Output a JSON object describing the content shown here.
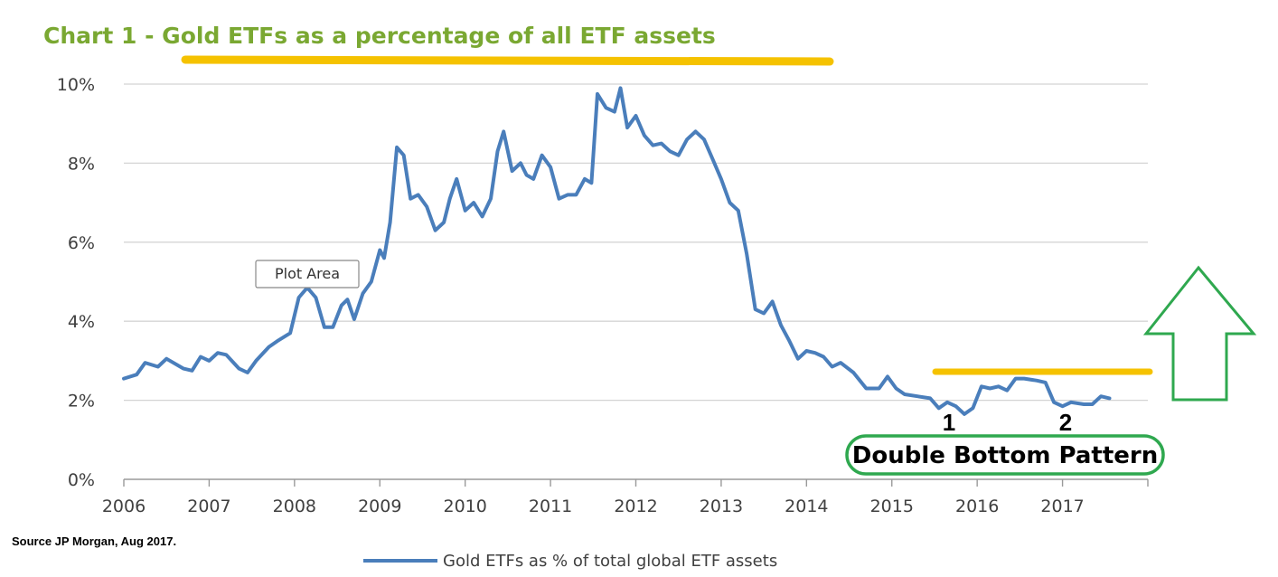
{
  "chart_data": {
    "type": "line",
    "title": "Chart 1 - Gold ETFs as a percentage of all ETF assets",
    "xlim": [
      2006,
      2018
    ],
    "ylim": [
      0,
      10
    ],
    "x_ticks": [
      "2006",
      "2007",
      "2008",
      "2009",
      "2010",
      "2011",
      "2012",
      "2013",
      "2014",
      "2015",
      "2016",
      "2017"
    ],
    "y_ticks": [
      "0%",
      "2%",
      "4%",
      "6%",
      "8%",
      "10%"
    ],
    "grid": "horizontal",
    "legend_position": "bottom-center",
    "series": [
      {
        "name": "Gold ETFs as % of total global ETF assets",
        "color": "#4a7ebb",
        "x": [
          2006.0,
          2006.15,
          2006.25,
          2006.4,
          2006.5,
          2006.7,
          2006.8,
          2006.9,
          2007.0,
          2007.1,
          2007.2,
          2007.35,
          2007.45,
          2007.55,
          2007.7,
          2007.8,
          2007.95,
          2008.05,
          2008.15,
          2008.25,
          2008.35,
          2008.45,
          2008.55,
          2008.62,
          2008.7,
          2008.8,
          2008.9,
          2009.0,
          2009.05,
          2009.12,
          2009.2,
          2009.28,
          2009.36,
          2009.45,
          2009.55,
          2009.65,
          2009.75,
          2009.82,
          2009.9,
          2010.0,
          2010.1,
          2010.2,
          2010.3,
          2010.38,
          2010.45,
          2010.55,
          2010.65,
          2010.72,
          2010.8,
          2010.9,
          2011.0,
          2011.1,
          2011.2,
          2011.3,
          2011.4,
          2011.48,
          2011.55,
          2011.65,
          2011.75,
          2011.82,
          2011.9,
          2012.0,
          2012.1,
          2012.2,
          2012.3,
          2012.4,
          2012.5,
          2012.6,
          2012.7,
          2012.8,
          2012.9,
          2013.0,
          2013.1,
          2013.2,
          2013.3,
          2013.4,
          2013.5,
          2013.6,
          2013.7,
          2013.8,
          2013.9,
          2014.0,
          2014.1,
          2014.2,
          2014.3,
          2014.4,
          2014.55,
          2014.7,
          2014.85,
          2014.95,
          2015.05,
          2015.15,
          2015.3,
          2015.45,
          2015.55,
          2015.65,
          2015.75,
          2015.85,
          2015.95,
          2016.05,
          2016.15,
          2016.25,
          2016.35,
          2016.45,
          2016.55,
          2016.7,
          2016.8,
          2016.9,
          2017.0,
          2017.1,
          2017.25,
          2017.35,
          2017.45,
          2017.55
        ],
        "y": [
          2.55,
          2.65,
          2.95,
          2.85,
          3.05,
          2.8,
          2.75,
          3.1,
          3.0,
          3.2,
          3.15,
          2.8,
          2.7,
          3.0,
          3.35,
          3.5,
          3.7,
          4.6,
          4.85,
          4.6,
          3.85,
          3.85,
          4.4,
          4.55,
          4.05,
          4.7,
          5.0,
          5.8,
          5.6,
          6.5,
          8.4,
          8.2,
          7.1,
          7.2,
          6.9,
          6.3,
          6.5,
          7.1,
          7.6,
          6.8,
          7.0,
          6.65,
          7.1,
          8.3,
          8.8,
          7.8,
          8.0,
          7.7,
          7.6,
          8.2,
          7.9,
          7.1,
          7.2,
          7.2,
          7.6,
          7.5,
          9.75,
          9.4,
          9.3,
          9.9,
          8.9,
          9.2,
          8.7,
          8.45,
          8.5,
          8.3,
          8.2,
          8.6,
          8.8,
          8.6,
          8.1,
          7.6,
          7.0,
          6.8,
          5.7,
          4.3,
          4.2,
          4.5,
          3.9,
          3.5,
          3.05,
          3.25,
          3.2,
          3.1,
          2.85,
          2.95,
          2.7,
          2.3,
          2.3,
          2.6,
          2.3,
          2.15,
          2.1,
          2.05,
          1.8,
          1.95,
          1.85,
          1.65,
          1.8,
          2.35,
          2.3,
          2.35,
          2.25,
          2.55,
          2.55,
          2.5,
          2.45,
          1.95,
          1.85,
          1.95,
          1.9,
          1.9,
          2.1,
          2.05
        ]
      }
    ]
  },
  "annotations": {
    "plot_area_label": "Plot Area",
    "bottom_1": "1",
    "bottom_2": "2",
    "pattern_label": "Double Bottom Pattern",
    "highlight_color": "#f5c200",
    "arrow_color": "#2fa84f",
    "title_color": "#7aa832"
  },
  "footer": {
    "source": "Source JP Morgan, Aug 2017."
  }
}
